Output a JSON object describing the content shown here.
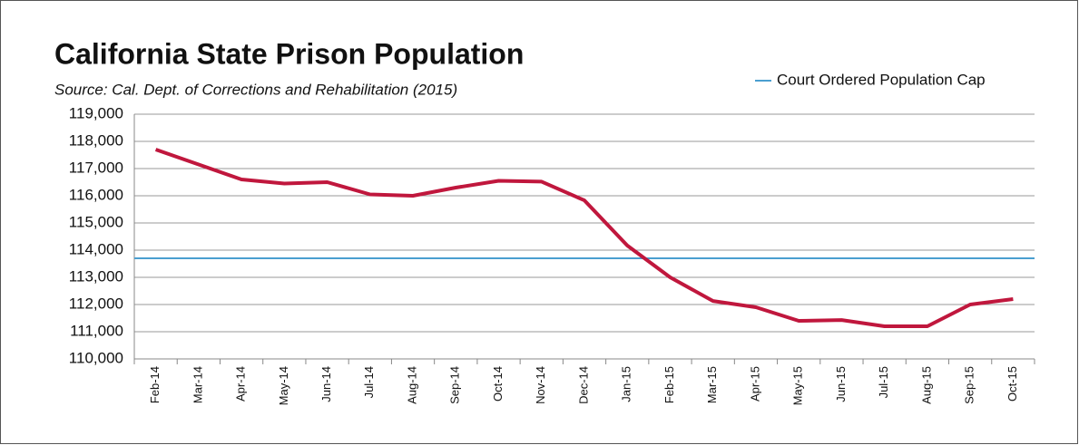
{
  "chart_data": {
    "type": "line",
    "title": "California State Prison Population",
    "subtitle": "Source: Cal. Dept. of Corrections and Rehabilitation (2015)",
    "categories": [
      "Feb-14",
      "Mar-14",
      "Apr-14",
      "May-14",
      "Jun-14",
      "Jul-14",
      "Aug-14",
      "Sep-14",
      "Oct-14",
      "Nov-14",
      "Dec-14",
      "Jan-15",
      "Feb-15",
      "Mar-15",
      "Apr-15",
      "May-15",
      "Jun-15",
      "Jul-15",
      "Aug-15",
      "Sep-15",
      "Oct-15"
    ],
    "series": [
      {
        "color": "#c0173d",
        "values": [
          117700,
          117150,
          116600,
          116450,
          116500,
          116050,
          116000,
          116300,
          116550,
          116520,
          115830,
          114170,
          113000,
          112130,
          111900,
          111400,
          111430,
          111200,
          111200,
          112000,
          112200
        ]
      }
    ],
    "cap": {
      "name": "Court Ordered Population Cap",
      "value": 113700,
      "color": "#4a9fd0"
    },
    "ylim": [
      110000,
      119000
    ],
    "yticks": [
      {
        "value": 110000,
        "label": "110,000"
      },
      {
        "value": 111000,
        "label": "111,000"
      },
      {
        "value": 112000,
        "label": "112,000"
      },
      {
        "value": 113000,
        "label": "113,000"
      },
      {
        "value": 114000,
        "label": "114,000"
      },
      {
        "value": 115000,
        "label": "115,000"
      },
      {
        "value": 116000,
        "label": "116,000"
      },
      {
        "value": 117000,
        "label": "117,000"
      },
      {
        "value": 118000,
        "label": "118,000"
      },
      {
        "value": 119000,
        "label": "119,000"
      }
    ],
    "grid": true
  }
}
